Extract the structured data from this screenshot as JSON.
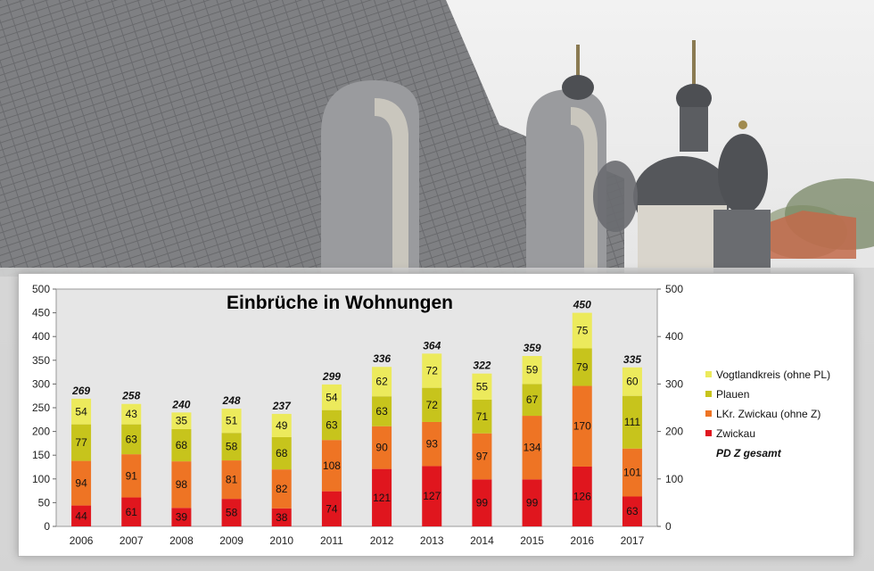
{
  "chart_data": {
    "type": "bar",
    "stacked": true,
    "title": "Einbrüche in Wohnungen",
    "categories": [
      "2006",
      "2007",
      "2008",
      "2009",
      "2010",
      "2011",
      "2012",
      "2013",
      "2014",
      "2015",
      "2016",
      "2017"
    ],
    "series": [
      {
        "name": "Zwickau",
        "color": "#e0161e",
        "values": [
          44,
          61,
          39,
          58,
          38,
          74,
          121,
          127,
          99,
          99,
          126,
          63
        ]
      },
      {
        "name": "LKr. Zwickau (ohne Z)",
        "color": "#ee7424",
        "values": [
          94,
          91,
          98,
          81,
          82,
          108,
          90,
          93,
          97,
          134,
          170,
          101
        ]
      },
      {
        "name": "Plauen",
        "color": "#c7c41c",
        "values": [
          77,
          63,
          68,
          58,
          68,
          63,
          63,
          72,
          71,
          67,
          79,
          111
        ]
      },
      {
        "name": "Vogtlandkreis (ohne PL)",
        "color": "#ecea5c",
        "values": [
          54,
          43,
          35,
          51,
          49,
          54,
          62,
          72,
          55,
          59,
          75,
          60
        ]
      }
    ],
    "totals": {
      "name": "PD Z gesamt",
      "values": [
        269,
        258,
        240,
        248,
        237,
        299,
        336,
        364,
        322,
        359,
        450,
        335
      ]
    },
    "ylim": [
      0,
      500
    ],
    "yticks": [
      0,
      50,
      100,
      150,
      200,
      250,
      300,
      350,
      400,
      450,
      500
    ],
    "yticks_right": [
      0,
      100,
      200,
      300,
      400,
      500
    ],
    "grid": false,
    "legend_position": "right",
    "background": "#e6e6e6"
  }
}
